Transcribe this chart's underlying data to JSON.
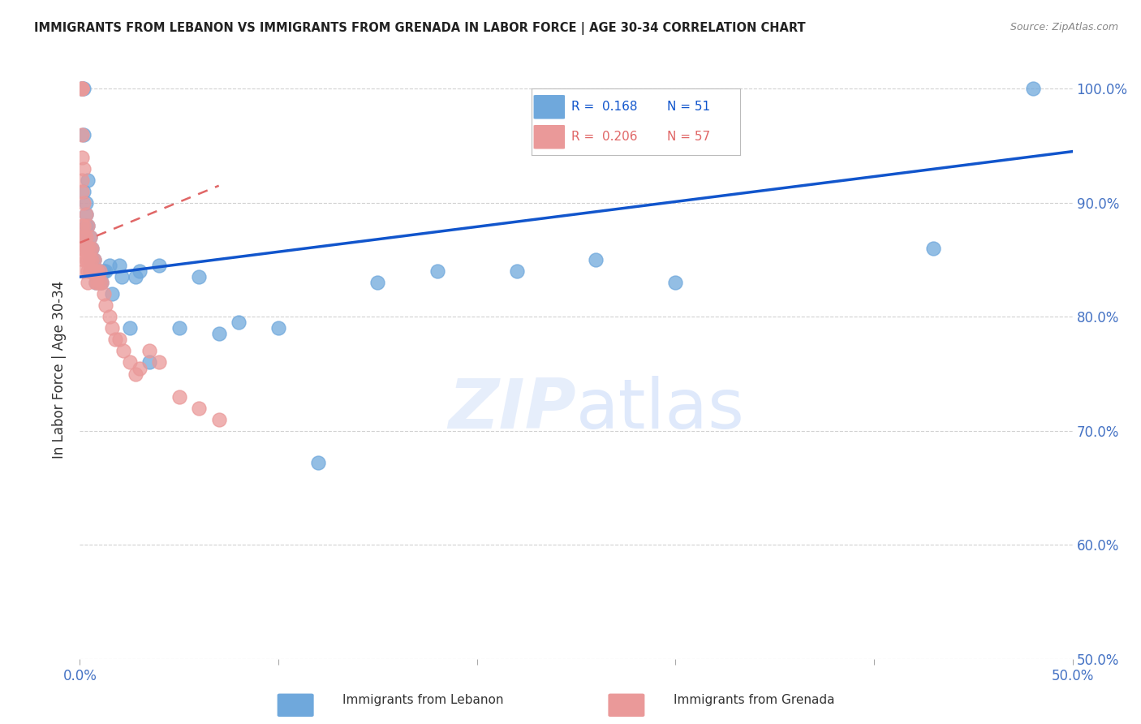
{
  "title": "IMMIGRANTS FROM LEBANON VS IMMIGRANTS FROM GRENADA IN LABOR FORCE | AGE 30-34 CORRELATION CHART",
  "source": "Source: ZipAtlas.com",
  "ylabel": "In Labor Force | Age 30-34",
  "watermark_zip": "ZIP",
  "watermark_atlas": "atlas",
  "legend_lebanon": "Immigrants from Lebanon",
  "legend_grenada": "Immigrants from Grenada",
  "R_lebanon": 0.168,
  "N_lebanon": 51,
  "R_grenada": 0.206,
  "N_grenada": 57,
  "xlim": [
    0.0,
    0.5
  ],
  "ylim": [
    0.5,
    1.008
  ],
  "xticks": [
    0.0,
    0.1,
    0.2,
    0.3,
    0.4,
    0.5
  ],
  "xtick_labels": [
    "0.0%",
    "",
    "",
    "",
    "",
    "50.0%"
  ],
  "yticks": [
    0.5,
    0.6,
    0.7,
    0.8,
    0.9,
    1.0
  ],
  "ytick_labels": [
    "50.0%",
    "60.0%",
    "70.0%",
    "80.0%",
    "90.0%",
    "100.0%"
  ],
  "color_lebanon": "#6fa8dc",
  "color_grenada": "#ea9999",
  "color_trend_lebanon": "#1155cc",
  "color_trend_grenada": "#e06666",
  "color_axis_labels": "#4472c4",
  "color_grid": "#cccccc",
  "color_title": "#222222",
  "background_color": "#ffffff",
  "lebanon_x": [
    0.001,
    0.001,
    0.001,
    0.001,
    0.002,
    0.002,
    0.002,
    0.003,
    0.003,
    0.003,
    0.004,
    0.004,
    0.004,
    0.005,
    0.005,
    0.005,
    0.005,
    0.006,
    0.006,
    0.007,
    0.007,
    0.008,
    0.008,
    0.009,
    0.01,
    0.01,
    0.011,
    0.012,
    0.013,
    0.015,
    0.016,
    0.02,
    0.021,
    0.025,
    0.028,
    0.03,
    0.035,
    0.04,
    0.05,
    0.06,
    0.07,
    0.08,
    0.1,
    0.12,
    0.15,
    0.18,
    0.22,
    0.26,
    0.3,
    0.43,
    0.48
  ],
  "lebanon_y": [
    1.0,
    1.0,
    1.0,
    0.87,
    1.0,
    0.96,
    0.91,
    0.9,
    0.89,
    0.88,
    0.92,
    0.88,
    0.86,
    0.87,
    0.86,
    0.85,
    0.84,
    0.86,
    0.85,
    0.85,
    0.84,
    0.84,
    0.83,
    0.84,
    0.83,
    0.84,
    0.83,
    0.84,
    0.84,
    0.845,
    0.82,
    0.845,
    0.835,
    0.79,
    0.835,
    0.84,
    0.76,
    0.845,
    0.79,
    0.835,
    0.785,
    0.795,
    0.79,
    0.672,
    0.83,
    0.84,
    0.84,
    0.85,
    0.83,
    0.86,
    1.0
  ],
  "grenada_x": [
    0.001,
    0.001,
    0.001,
    0.001,
    0.001,
    0.001,
    0.001,
    0.001,
    0.001,
    0.001,
    0.002,
    0.002,
    0.002,
    0.002,
    0.002,
    0.002,
    0.002,
    0.003,
    0.003,
    0.003,
    0.003,
    0.004,
    0.004,
    0.004,
    0.004,
    0.004,
    0.005,
    0.005,
    0.005,
    0.005,
    0.006,
    0.006,
    0.006,
    0.007,
    0.007,
    0.008,
    0.008,
    0.009,
    0.009,
    0.01,
    0.01,
    0.011,
    0.012,
    0.013,
    0.015,
    0.016,
    0.018,
    0.02,
    0.022,
    0.025,
    0.028,
    0.03,
    0.035,
    0.04,
    0.05,
    0.06,
    0.07
  ],
  "grenada_y": [
    1.0,
    1.0,
    1.0,
    0.96,
    0.94,
    0.92,
    0.91,
    0.88,
    0.87,
    0.86,
    0.93,
    0.9,
    0.88,
    0.87,
    0.86,
    0.85,
    0.84,
    0.89,
    0.87,
    0.86,
    0.85,
    0.88,
    0.86,
    0.85,
    0.84,
    0.83,
    0.87,
    0.86,
    0.85,
    0.84,
    0.86,
    0.85,
    0.84,
    0.85,
    0.84,
    0.84,
    0.83,
    0.84,
    0.83,
    0.84,
    0.83,
    0.83,
    0.82,
    0.81,
    0.8,
    0.79,
    0.78,
    0.78,
    0.77,
    0.76,
    0.75,
    0.755,
    0.77,
    0.76,
    0.73,
    0.72,
    0.71
  ],
  "trend_lebanon_x0": 0.0,
  "trend_lebanon_x1": 0.5,
  "trend_lebanon_y0": 0.835,
  "trend_lebanon_y1": 0.945,
  "trend_grenada_x0": 0.0,
  "trend_grenada_x1": 0.07,
  "trend_grenada_y0": 0.865,
  "trend_grenada_y1": 0.915
}
